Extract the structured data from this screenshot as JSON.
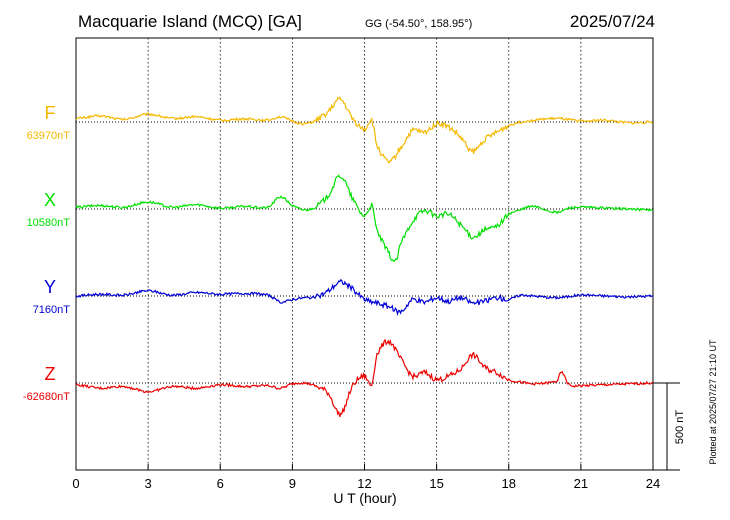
{
  "header": {
    "station": "Macquarie Island (MCQ)  [GA]",
    "coords": "GG (-54.50°, 158.95°)",
    "date": "2025/07/24"
  },
  "side_note": "Plotted at 2025/07/27 21:10 UT",
  "scale_label": "500 nT",
  "chart_data": {
    "type": "line",
    "xlabel": "U T (hour)",
    "xlim": [
      0,
      24
    ],
    "xticks": [
      0,
      3,
      6,
      9,
      12,
      15,
      18,
      21,
      24
    ],
    "grid": true,
    "scale_bar_nT": 500,
    "series": [
      {
        "name": "F",
        "baseline_label": "63970nT",
        "color": "#f5b800",
        "points": [
          [
            0,
            20
          ],
          [
            1,
            35
          ],
          [
            2,
            15
          ],
          [
            3,
            45
          ],
          [
            4,
            20
          ],
          [
            5,
            30
          ],
          [
            6,
            10
          ],
          [
            7,
            18
          ],
          [
            8,
            12
          ],
          [
            8.5,
            30
          ],
          [
            9,
            5
          ],
          [
            9.5,
            -10
          ],
          [
            10,
            10
          ],
          [
            10.5,
            60
          ],
          [
            11,
            130
          ],
          [
            11.5,
            20
          ],
          [
            12,
            -40
          ],
          [
            12.3,
            10
          ],
          [
            12.5,
            -130
          ],
          [
            13,
            -230
          ],
          [
            13.5,
            -150
          ],
          [
            14,
            -50
          ],
          [
            14.5,
            -60
          ],
          [
            15,
            -10
          ],
          [
            15.5,
            -30
          ],
          [
            16,
            -90
          ],
          [
            16.5,
            -170
          ],
          [
            17,
            -100
          ],
          [
            17.5,
            -60
          ],
          [
            18,
            -20
          ],
          [
            18.5,
            0
          ],
          [
            19,
            10
          ],
          [
            20,
            20
          ],
          [
            21,
            5
          ],
          [
            22,
            10
          ],
          [
            23,
            -5
          ],
          [
            24,
            0
          ]
        ]
      },
      {
        "name": "X",
        "baseline_label": "10580nT",
        "color": "#00e000",
        "points": [
          [
            0,
            10
          ],
          [
            1,
            20
          ],
          [
            2,
            10
          ],
          [
            3,
            40
          ],
          [
            4,
            10
          ],
          [
            5,
            25
          ],
          [
            6,
            5
          ],
          [
            7,
            15
          ],
          [
            8,
            10
          ],
          [
            8.5,
            70
          ],
          [
            9,
            20
          ],
          [
            9.5,
            -5
          ],
          [
            10,
            15
          ],
          [
            10.5,
            80
          ],
          [
            11,
            190
          ],
          [
            11.5,
            60
          ],
          [
            12,
            -40
          ],
          [
            12.3,
            20
          ],
          [
            12.5,
            -120
          ],
          [
            13,
            -250
          ],
          [
            13.3,
            -300
          ],
          [
            13.5,
            -200
          ],
          [
            14,
            -70
          ],
          [
            14.5,
            -10
          ],
          [
            15,
            -40
          ],
          [
            15.5,
            -30
          ],
          [
            16,
            -90
          ],
          [
            16.5,
            -160
          ],
          [
            17,
            -120
          ],
          [
            17.5,
            -100
          ],
          [
            18,
            -30
          ],
          [
            18.5,
            -5
          ],
          [
            19,
            15
          ],
          [
            20,
            -20
          ],
          [
            20.5,
            5
          ],
          [
            21,
            10
          ],
          [
            22,
            5
          ],
          [
            23,
            0
          ],
          [
            24,
            -5
          ]
        ]
      },
      {
        "name": "Y",
        "baseline_label": "7160nT",
        "color": "#0000d8",
        "points": [
          [
            0,
            0
          ],
          [
            1,
            10
          ],
          [
            2,
            5
          ],
          [
            3,
            30
          ],
          [
            4,
            5
          ],
          [
            5,
            20
          ],
          [
            6,
            10
          ],
          [
            7,
            15
          ],
          [
            8,
            5
          ],
          [
            8.5,
            -35
          ],
          [
            9,
            -20
          ],
          [
            9.5,
            -10
          ],
          [
            10,
            -5
          ],
          [
            10.5,
            30
          ],
          [
            11,
            80
          ],
          [
            11.5,
            40
          ],
          [
            12,
            -20
          ],
          [
            12.5,
            -40
          ],
          [
            13,
            -60
          ],
          [
            13.5,
            -90
          ],
          [
            14,
            -20
          ],
          [
            14.5,
            -35
          ],
          [
            15,
            -10
          ],
          [
            15.5,
            -30
          ],
          [
            16,
            -10
          ],
          [
            16.5,
            -40
          ],
          [
            17,
            -30
          ],
          [
            17.5,
            -10
          ],
          [
            18,
            -20
          ],
          [
            18.5,
            5
          ],
          [
            19,
            0
          ],
          [
            20,
            -10
          ],
          [
            21,
            5
          ],
          [
            22,
            0
          ],
          [
            23,
            -5
          ],
          [
            24,
            0
          ]
        ]
      },
      {
        "name": "Z",
        "baseline_label": "-62680nT",
        "color": "#ee0000",
        "points": [
          [
            0,
            -10
          ],
          [
            1,
            -30
          ],
          [
            2,
            -20
          ],
          [
            3,
            -50
          ],
          [
            4,
            -20
          ],
          [
            5,
            -30
          ],
          [
            6,
            -10
          ],
          [
            7,
            -20
          ],
          [
            8,
            -15
          ],
          [
            8.5,
            -30
          ],
          [
            9,
            -5
          ],
          [
            9.5,
            0
          ],
          [
            10,
            -20
          ],
          [
            10.5,
            -60
          ],
          [
            11,
            -180
          ],
          [
            11.5,
            -20
          ],
          [
            12,
            40
          ],
          [
            12.3,
            -10
          ],
          [
            12.5,
            160
          ],
          [
            13,
            240
          ],
          [
            13.5,
            140
          ],
          [
            14,
            40
          ],
          [
            14.5,
            60
          ],
          [
            15,
            20
          ],
          [
            15.5,
            40
          ],
          [
            16,
            80
          ],
          [
            16.5,
            160
          ],
          [
            17,
            90
          ],
          [
            17.5,
            60
          ],
          [
            18,
            20
          ],
          [
            18.5,
            5
          ],
          [
            19,
            -5
          ],
          [
            20,
            10
          ],
          [
            20.2,
            60
          ],
          [
            20.5,
            -10
          ],
          [
            21,
            -15
          ],
          [
            22,
            -10
          ],
          [
            23,
            -5
          ],
          [
            24,
            0
          ]
        ]
      }
    ]
  }
}
